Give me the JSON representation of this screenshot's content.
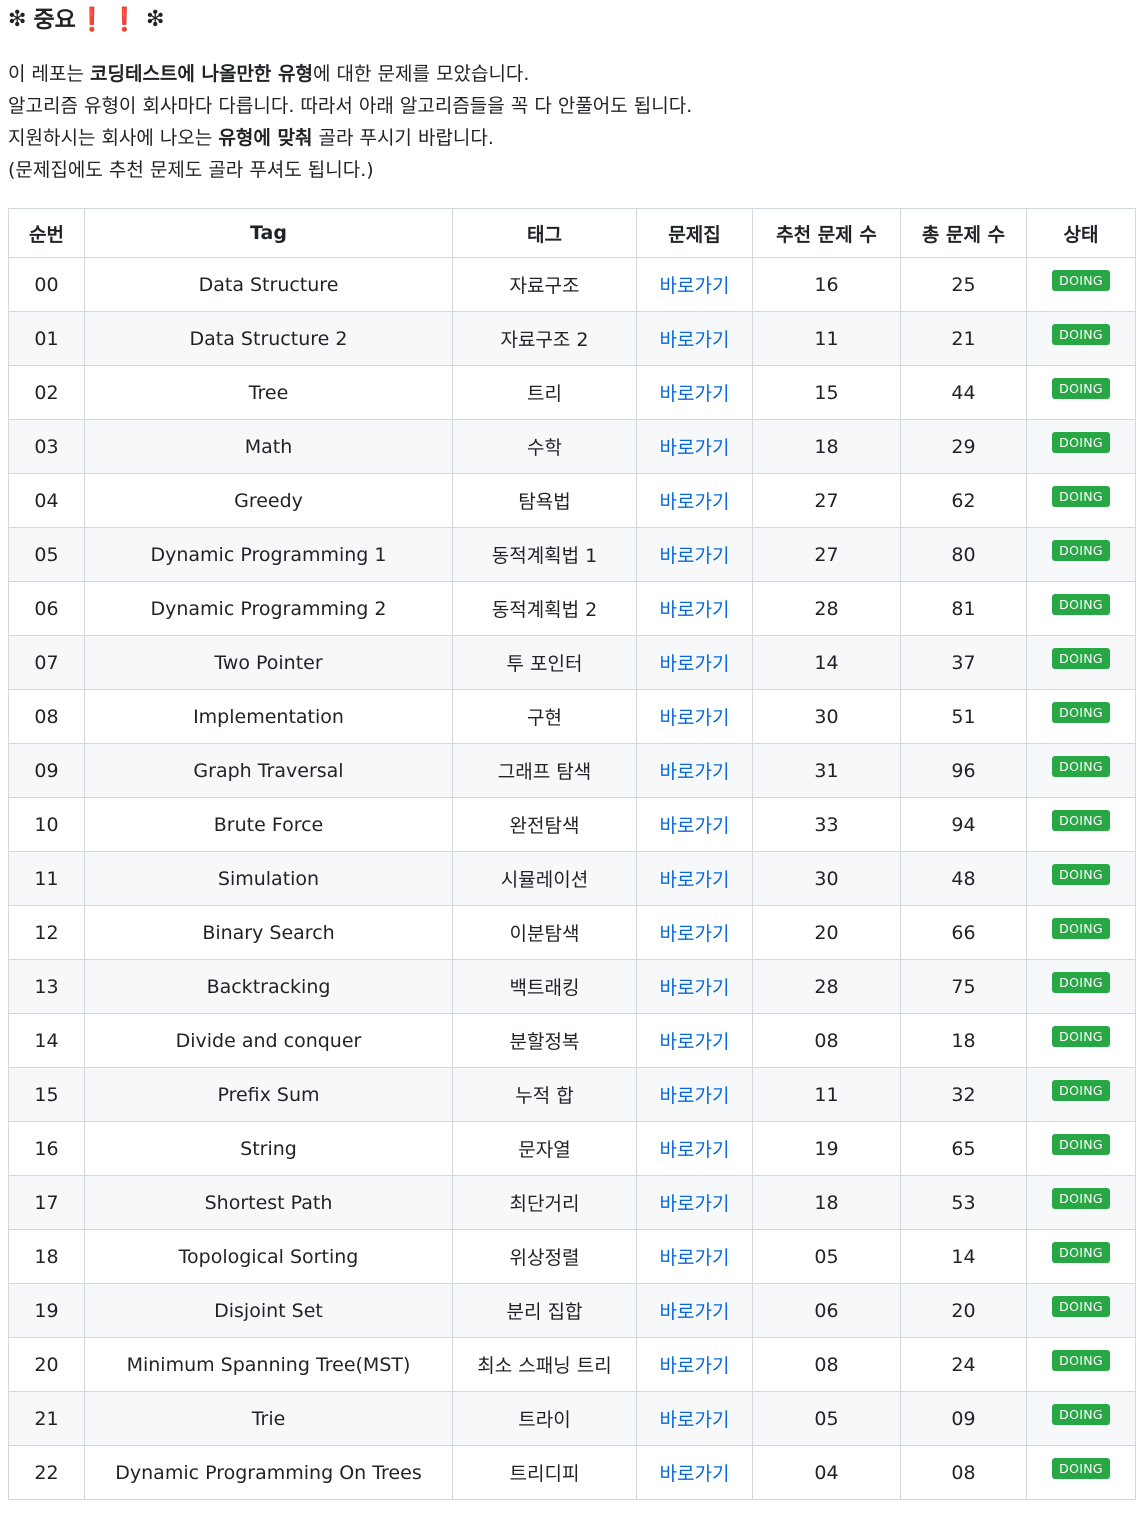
{
  "heading": {
    "title": "중요",
    "bang1": "❗",
    "bang2": "❗",
    "asterisk": "❇"
  },
  "intro": {
    "line1": {
      "pre": "이 레포는 ",
      "bold": "코딩테스트에 나올만한 유형",
      "post": "에 대한 문제를 모았습니다."
    },
    "line2": "알고리즘 유형이 회사마다 다릅니다. 따라서 아래 알고리즘들을 꼭 다 안풀어도 됩니다.",
    "line3": {
      "pre": "지원하시는 회사에 나오는 ",
      "bold": "유형에 맞춰",
      "post": " 골라 푸시기 바랍니다."
    },
    "line4": "(문제집에도 추천 문제도 골라 푸셔도 됩니다.)"
  },
  "table": {
    "headers": [
      "순번",
      "Tag",
      "태그",
      "문제집",
      "추천 문제 수",
      "총 문제 수",
      "상태"
    ],
    "rows": [
      {
        "no": "00",
        "tag": "Data Structure",
        "ko": "자료구조",
        "link": "바로가기",
        "rec": "16",
        "total": "25",
        "status": "DOING"
      },
      {
        "no": "01",
        "tag": "Data Structure 2",
        "ko": "자료구조 2",
        "link": "바로가기",
        "rec": "11",
        "total": "21",
        "status": "DOING"
      },
      {
        "no": "02",
        "tag": "Tree",
        "ko": "트리",
        "link": "바로가기",
        "rec": "15",
        "total": "44",
        "status": "DOING"
      },
      {
        "no": "03",
        "tag": "Math",
        "ko": "수학",
        "link": "바로가기",
        "rec": "18",
        "total": "29",
        "status": "DOING"
      },
      {
        "no": "04",
        "tag": "Greedy",
        "ko": "탐욕법",
        "link": "바로가기",
        "rec": "27",
        "total": "62",
        "status": "DOING"
      },
      {
        "no": "05",
        "tag": "Dynamic Programming 1",
        "ko": "동적계획법 1",
        "link": "바로가기",
        "rec": "27",
        "total": "80",
        "status": "DOING"
      },
      {
        "no": "06",
        "tag": "Dynamic Programming 2",
        "ko": "동적계획법 2",
        "link": "바로가기",
        "rec": "28",
        "total": "81",
        "status": "DOING"
      },
      {
        "no": "07",
        "tag": "Two Pointer",
        "ko": "투 포인터",
        "link": "바로가기",
        "rec": "14",
        "total": "37",
        "status": "DOING"
      },
      {
        "no": "08",
        "tag": "Implementation",
        "ko": "구현",
        "link": "바로가기",
        "rec": "30",
        "total": "51",
        "status": "DOING"
      },
      {
        "no": "09",
        "tag": "Graph Traversal",
        "ko": "그래프 탐색",
        "link": "바로가기",
        "rec": "31",
        "total": "96",
        "status": "DOING"
      },
      {
        "no": "10",
        "tag": "Brute Force",
        "ko": "완전탐색",
        "link": "바로가기",
        "rec": "33",
        "total": "94",
        "status": "DOING"
      },
      {
        "no": "11",
        "tag": "Simulation",
        "ko": "시뮬레이션",
        "link": "바로가기",
        "rec": "30",
        "total": "48",
        "status": "DOING"
      },
      {
        "no": "12",
        "tag": "Binary Search",
        "ko": "이분탐색",
        "link": "바로가기",
        "rec": "20",
        "total": "66",
        "status": "DOING"
      },
      {
        "no": "13",
        "tag": "Backtracking",
        "ko": "백트래킹",
        "link": "바로가기",
        "rec": "28",
        "total": "75",
        "status": "DOING"
      },
      {
        "no": "14",
        "tag": "Divide and conquer",
        "ko": "분할정복",
        "link": "바로가기",
        "rec": "08",
        "total": "18",
        "status": "DOING"
      },
      {
        "no": "15",
        "tag": "Prefix Sum",
        "ko": "누적 합",
        "link": "바로가기",
        "rec": "11",
        "total": "32",
        "status": "DOING"
      },
      {
        "no": "16",
        "tag": "String",
        "ko": "문자열",
        "link": "바로가기",
        "rec": "19",
        "total": "65",
        "status": "DOING"
      },
      {
        "no": "17",
        "tag": "Shortest Path",
        "ko": "최단거리",
        "link": "바로가기",
        "rec": "18",
        "total": "53",
        "status": "DOING"
      },
      {
        "no": "18",
        "tag": "Topological Sorting",
        "ko": "위상정렬",
        "link": "바로가기",
        "rec": "05",
        "total": "14",
        "status": "DOING"
      },
      {
        "no": "19",
        "tag": "Disjoint Set",
        "ko": "분리 집합",
        "link": "바로가기",
        "rec": "06",
        "total": "20",
        "status": "DOING"
      },
      {
        "no": "20",
        "tag": "Minimum Spanning Tree(MST)",
        "ko": "최소 스패닝 트리",
        "link": "바로가기",
        "rec": "08",
        "total": "24",
        "status": "DOING"
      },
      {
        "no": "21",
        "tag": "Trie",
        "ko": "트라이",
        "link": "바로가기",
        "rec": "05",
        "total": "09",
        "status": "DOING"
      },
      {
        "no": "22",
        "tag": "Dynamic Programming On Trees",
        "ko": "트리디피",
        "link": "바로가기",
        "rec": "04",
        "total": "08",
        "status": "DOING"
      }
    ]
  },
  "colors": {
    "link": "#0969da",
    "badge": "#28a745",
    "bang": "#e0162b",
    "border": "#d0d7de",
    "stripe": "#f6f8fa"
  }
}
